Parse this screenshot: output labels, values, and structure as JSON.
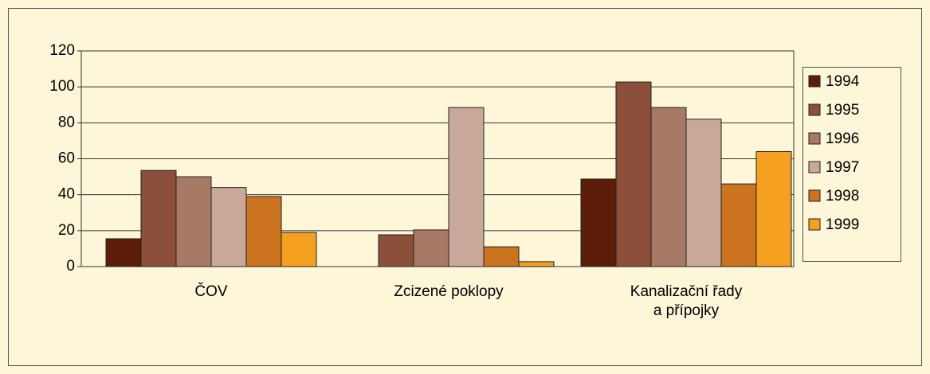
{
  "chart_data": {
    "type": "bar",
    "categories": [
      "ČOV",
      "Zcizené poklopy",
      "Kanalizační řady\na přípojky"
    ],
    "series": [
      {
        "name": "1994",
        "color": "#5c1e08",
        "values": [
          15.5,
          0,
          48.7
        ]
      },
      {
        "name": "1995",
        "color": "#8b4f3a",
        "values": [
          53.5,
          17.7,
          102.7
        ]
      },
      {
        "name": "1996",
        "color": "#a87a65",
        "values": [
          50,
          20.4,
          88.5
        ]
      },
      {
        "name": "1997",
        "color": "#c9a89a",
        "values": [
          44,
          88.5,
          82
        ]
      },
      {
        "name": "1998",
        "color": "#cc7320",
        "values": [
          39,
          11,
          46
        ]
      },
      {
        "name": "1999",
        "color": "#f5a020",
        "values": [
          19,
          2.7,
          64
        ]
      }
    ],
    "ylim": [
      0,
      120
    ],
    "yticks": [
      0,
      20,
      40,
      60,
      80,
      100,
      120
    ],
    "grid": true,
    "legend": "right"
  }
}
